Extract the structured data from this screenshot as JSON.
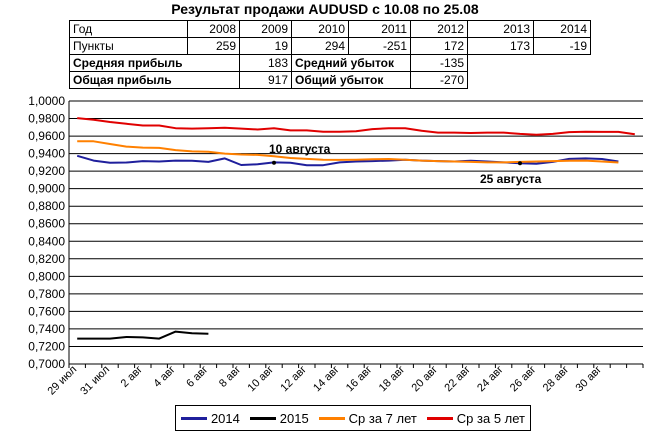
{
  "title": "Результат продажи AUDUSD с 10.08 по 25.08",
  "stats": {
    "header_label": "Год",
    "years": [
      "2008",
      "2009",
      "2010",
      "2011",
      "2012",
      "2013",
      "2014"
    ],
    "points_label": "Пункты",
    "points": [
      "259",
      "19",
      "294",
      "-251",
      "172",
      "173",
      "-19"
    ],
    "avg_profit_label": "Средняя прибыль",
    "avg_profit": "183",
    "avg_loss_label": "Средний убыток",
    "avg_loss": "-135",
    "total_profit_label": "Общая прибыль",
    "total_profit": "917",
    "total_loss_label": "Общий убыток",
    "total_loss": "-270"
  },
  "chart_data": {
    "type": "line",
    "ylim": [
      0.7,
      1.0
    ],
    "y_ticks": [
      "1,0000",
      "0,9800",
      "0,9600",
      "0,9400",
      "0,9200",
      "0,9000",
      "0,8800",
      "0,8600",
      "0,8400",
      "0,8200",
      "0,8000",
      "0,7800",
      "0,7600",
      "0,7400",
      "0,7200",
      "0,7000"
    ],
    "x_tick_labels": [
      "29 июл",
      "31 июл",
      "2 авг",
      "4 авг",
      "6 авг",
      "8 авг",
      "10 авг",
      "12 авг",
      "14 авг",
      "16 авг",
      "18 авг",
      "20 авг",
      "22 авг",
      "24 авг",
      "26 авг",
      "28 авг",
      "30 авг"
    ],
    "grid": "horizontal",
    "legend_placement": "bottom",
    "annotations": [
      {
        "text": "10 августа",
        "x_index": 12,
        "y": 0.9295
      },
      {
        "text": "25 августа",
        "x_index": 27,
        "y": 0.929
      }
    ],
    "series": [
      {
        "name": "2014",
        "color": "#1f1f9c",
        "values": [
          0.9375,
          0.932,
          0.9295,
          0.9298,
          0.9315,
          0.931,
          0.932,
          0.9318,
          0.9305,
          0.9345,
          0.927,
          0.9278,
          0.93,
          0.9295,
          0.9268,
          0.9268,
          0.93,
          0.931,
          0.9315,
          0.932,
          0.933,
          0.932,
          0.9315,
          0.931,
          0.9318,
          0.931,
          0.93,
          0.929,
          0.9285,
          0.9305,
          0.934,
          0.9345,
          0.9338,
          0.931
        ]
      },
      {
        "name": "2015",
        "color": "#000000",
        "values": [
          0.729,
          0.729,
          0.729,
          0.7308,
          0.7303,
          0.729,
          0.737,
          0.735,
          0.7345
        ]
      },
      {
        "name": "Ср за 7 лет",
        "color": "#ff8000",
        "values": [
          0.954,
          0.954,
          0.951,
          0.948,
          0.9468,
          0.9465,
          0.944,
          0.9425,
          0.942,
          0.94,
          0.939,
          0.9385,
          0.937,
          0.935,
          0.934,
          0.933,
          0.9328,
          0.933,
          0.9335,
          0.9338,
          0.933,
          0.932,
          0.9315,
          0.931,
          0.9305,
          0.93,
          0.93,
          0.9305,
          0.931,
          0.9315,
          0.9318,
          0.932,
          0.931,
          0.9298
        ]
      },
      {
        "name": "Ср за 5 лет",
        "color": "#e00000",
        "values": [
          0.9805,
          0.9785,
          0.976,
          0.974,
          0.972,
          0.972,
          0.969,
          0.9685,
          0.969,
          0.9695,
          0.9685,
          0.9675,
          0.969,
          0.9665,
          0.9665,
          0.965,
          0.965,
          0.9655,
          0.968,
          0.969,
          0.969,
          0.966,
          0.964,
          0.964,
          0.9635,
          0.964,
          0.964,
          0.9625,
          0.9615,
          0.9625,
          0.9645,
          0.965,
          0.9648,
          0.9648,
          0.962
        ]
      }
    ]
  }
}
